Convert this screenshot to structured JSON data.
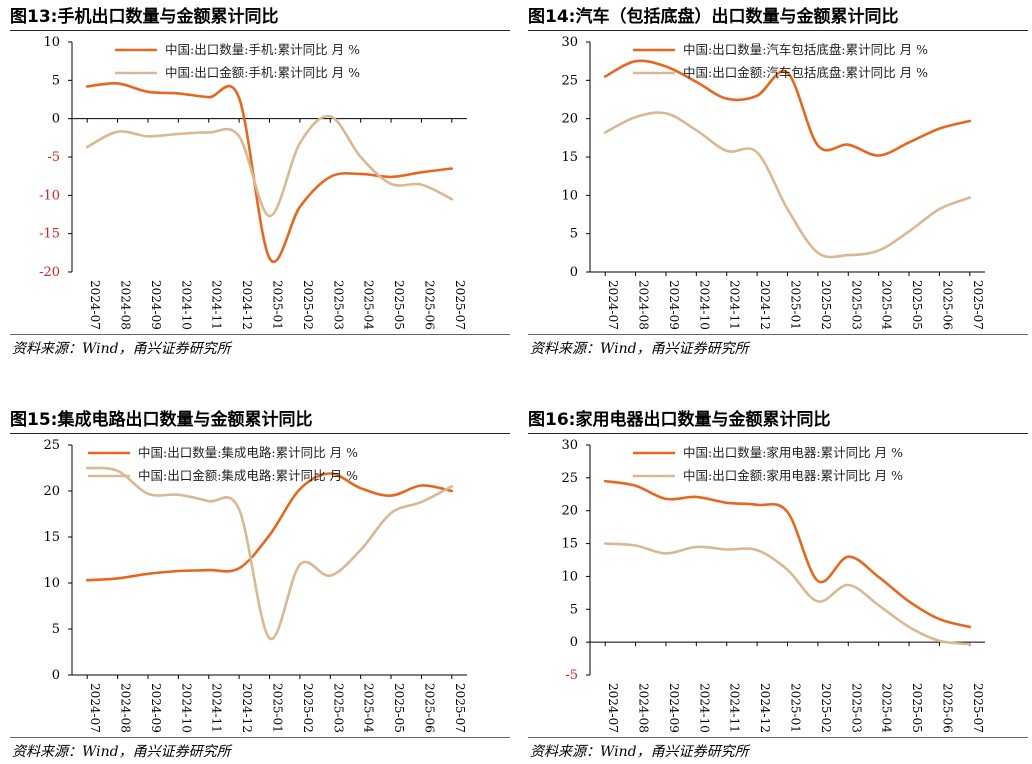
{
  "source_text": "资料来源：Wind，甬兴证券研究所",
  "colors": {
    "quantity": "#e8671e",
    "amount": "#d9b993",
    "neg_axis": "#e02020"
  },
  "chart_data": [
    {
      "id": "fig13",
      "type": "line",
      "title": "图13:手机出口数量与金额累计同比",
      "categories": [
        "2024-07",
        "2024-08",
        "2024-09",
        "2024-10",
        "2024-11",
        "2024-12",
        "2025-01",
        "2025-02",
        "2025-03",
        "2025-04",
        "2025-05",
        "2025-06",
        "2025-07"
      ],
      "ylim": [
        -20,
        10
      ],
      "yticks": [
        -20,
        -15,
        -10,
        -5,
        0,
        5,
        10
      ],
      "legend_position": "top-center",
      "series": [
        {
          "name": "中国:出口数量:手机:累计同比 月 %",
          "values": [
            4.2,
            4.6,
            3.5,
            3.3,
            2.8,
            2.7,
            -18.2,
            -11.5,
            -7.6,
            -7.2,
            -7.6,
            -7.0,
            -6.5
          ]
        },
        {
          "name": "中国:出口金额:手机:累计同比 月 %",
          "values": [
            -3.7,
            -1.7,
            -2.3,
            -2.0,
            -1.8,
            -2.3,
            -12.7,
            -3.2,
            0.3,
            -5.0,
            -8.5,
            -8.6,
            -10.5
          ]
        }
      ]
    },
    {
      "id": "fig14",
      "type": "line",
      "title": "图14:汽车（包括底盘）出口数量与金额累计同比",
      "categories": [
        "2024-07",
        "2024-08",
        "2024-09",
        "2024-10",
        "2024-11",
        "2024-12",
        "2025-01",
        "2025-02",
        "2025-03",
        "2025-04",
        "2025-05",
        "2025-06",
        "2025-07"
      ],
      "ylim": [
        0,
        30
      ],
      "yticks": [
        0,
        5,
        10,
        15,
        20,
        25,
        30
      ],
      "legend_position": "top-center",
      "series": [
        {
          "name": "中国:出口数量:汽车包括底盘:累计同比 月 %",
          "values": [
            25.5,
            27.5,
            26.8,
            24.8,
            22.6,
            23.0,
            26.0,
            16.5,
            16.6,
            15.2,
            16.9,
            18.7,
            19.7
          ]
        },
        {
          "name": "中国:出口金额:汽车包括底盘:累计同比 月 %",
          "values": [
            18.2,
            20.2,
            20.7,
            18.5,
            15.8,
            15.6,
            8.2,
            2.5,
            2.2,
            2.8,
            5.3,
            8.2,
            9.7
          ]
        }
      ]
    },
    {
      "id": "fig15",
      "type": "line",
      "title": "图15:集成电路出口数量与金额累计同比",
      "categories": [
        "2024-07",
        "2024-08",
        "2024-09",
        "2024-10",
        "2024-11",
        "2024-12",
        "2025-01",
        "2025-02",
        "2025-03",
        "2025-04",
        "2025-05",
        "2025-06",
        "2025-07"
      ],
      "ylim": [
        0,
        25
      ],
      "yticks": [
        0,
        5,
        10,
        15,
        20,
        25
      ],
      "legend_position": "top-center",
      "series": [
        {
          "name": "中国:出口数量:集成电路:累计同比 月 %",
          "values": [
            10.3,
            10.5,
            11.0,
            11.3,
            11.4,
            11.6,
            15.2,
            20.2,
            21.9,
            20.3,
            19.5,
            20.6,
            20.0
          ]
        },
        {
          "name": "中国:出口金额:集成电路:累计同比 月 %",
          "values": [
            22.5,
            22.2,
            19.7,
            19.6,
            18.9,
            18.0,
            4.0,
            12.0,
            10.8,
            13.6,
            17.6,
            18.8,
            20.5
          ]
        }
      ]
    },
    {
      "id": "fig16",
      "type": "line",
      "title": "图16:家用电器出口数量与金额累计同比",
      "categories": [
        "2024-07",
        "2024-08",
        "2024-09",
        "2024-10",
        "2024-11",
        "2024-12",
        "2025-01",
        "2025-02",
        "2025-03",
        "2025-04",
        "2025-05",
        "2025-06",
        "2025-07"
      ],
      "ylim": [
        -5,
        30
      ],
      "yticks": [
        -5,
        0,
        5,
        10,
        15,
        20,
        25,
        30
      ],
      "legend_position": "top-center",
      "series": [
        {
          "name": "中国:出口数量:家用电器:累计同比 月 %",
          "values": [
            24.5,
            23.8,
            21.8,
            22.1,
            21.2,
            20.9,
            19.8,
            9.3,
            13.0,
            9.9,
            6.2,
            3.5,
            2.3
          ]
        },
        {
          "name": "中国:出口金额:家用电器:累计同比 月 %",
          "values": [
            15.0,
            14.7,
            13.5,
            14.5,
            14.1,
            14.0,
            11.0,
            6.2,
            8.7,
            5.6,
            2.3,
            0.2,
            -0.3
          ]
        }
      ]
    }
  ]
}
